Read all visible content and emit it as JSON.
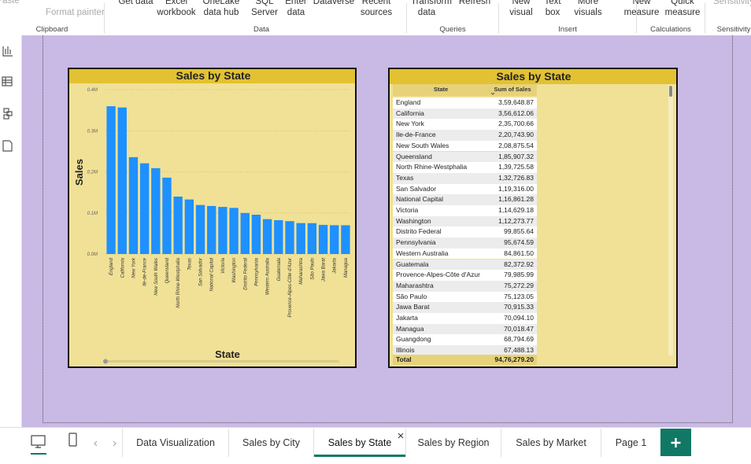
{
  "ribbon": {
    "buttons": [
      "Paste",
      "Format painter",
      "Get data",
      "Excel workbook",
      "OneLake data hub",
      "SQL Server",
      "Enter data",
      "Dataverse",
      "Recent sources",
      "Transform data",
      "Refresh",
      "New visual",
      "Text box",
      "More visuals",
      "New measure",
      "Quick measure",
      "Sensitivity"
    ],
    "groups": [
      "Clipboard",
      "Data",
      "Queries",
      "Insert",
      "Calculations",
      "Sensitivity"
    ]
  },
  "chart_data": {
    "type": "bar",
    "title": "Sales by State",
    "x_label": "State",
    "y_label": "Sales",
    "categories": [
      "England",
      "California",
      "New York",
      "Ile-de-France",
      "New South Wales",
      "Queensland",
      "North Rhine-Westphalia",
      "Texas",
      "San Salvador",
      "National Capital",
      "Victoria",
      "Washington",
      "Distrito Federal",
      "Pennsylvania",
      "Western Australia",
      "Guatemala",
      "Provence-Alpes-Côte d'Azur",
      "Maharashtra",
      "São Paulo",
      "Jawa Barat",
      "Jakarta",
      "Managua"
    ],
    "values": [
      359648.87,
      356612.06,
      235700.66,
      220743.9,
      208875.54,
      185907.32,
      139725.58,
      132726.83,
      119316.0,
      116861.28,
      114629.18,
      112273.77,
      99855.64,
      95674.59,
      84861.5,
      82372.92,
      79985.99,
      75272.29,
      75123.05,
      70915.33,
      70094.1,
      70018.47
    ],
    "color": "#1e90ff",
    "ylim": [
      0,
      400000
    ],
    "yticks": [
      {
        "value": 0,
        "label": "0.0M"
      },
      {
        "value": 100000,
        "label": "0.1M"
      },
      {
        "value": 200000,
        "label": "0.2M"
      },
      {
        "value": 300000,
        "label": "0.3M"
      },
      {
        "value": 400000,
        "label": "0.4M"
      }
    ],
    "grid": true
  },
  "table": {
    "title": "Sales by State",
    "columns": [
      "State",
      "Sum of Sales"
    ],
    "rows": [
      [
        "England",
        "3,59,648.87"
      ],
      [
        "California",
        "3,56,612.06"
      ],
      [
        "New York",
        "2,35,700.66"
      ],
      [
        "Ile-de-France",
        "2,20,743.90"
      ],
      [
        "New South Wales",
        "2,08,875.54"
      ],
      [
        "Queensland",
        "1,85,907.32"
      ],
      [
        "North Rhine-Westphalia",
        "1,39,725.58"
      ],
      [
        "Texas",
        "1,32,726.83"
      ],
      [
        "San Salvador",
        "1,19,316.00"
      ],
      [
        "National Capital",
        "1,16,861.28"
      ],
      [
        "Victoria",
        "1,14,629.18"
      ],
      [
        "Washington",
        "1,12,273.77"
      ],
      [
        "Distrito Federal",
        "99,855.64"
      ],
      [
        "Pennsylvania",
        "95,674.59"
      ],
      [
        "Western Australia",
        "84,861.50"
      ],
      [
        "Guatemala",
        "82,372.92"
      ],
      [
        "Provence-Alpes-Côte d'Azur",
        "79,985.99"
      ],
      [
        "Maharashtra",
        "75,272.29"
      ],
      [
        "São Paulo",
        "75,123.05"
      ],
      [
        "Jawa Barat",
        "70,915.33"
      ],
      [
        "Jakarta",
        "70,094.10"
      ],
      [
        "Managua",
        "70,018.47"
      ],
      [
        "Guangdong",
        "68,794.69"
      ],
      [
        "Illinois",
        "67,488.13"
      ]
    ],
    "total": [
      "Total",
      "94,76,279.20"
    ]
  },
  "page_tabs": [
    "Data Visualization",
    "Sales by City",
    "Sales by State",
    "Sales by Region",
    "Sales by Market",
    "Page 1"
  ]
}
